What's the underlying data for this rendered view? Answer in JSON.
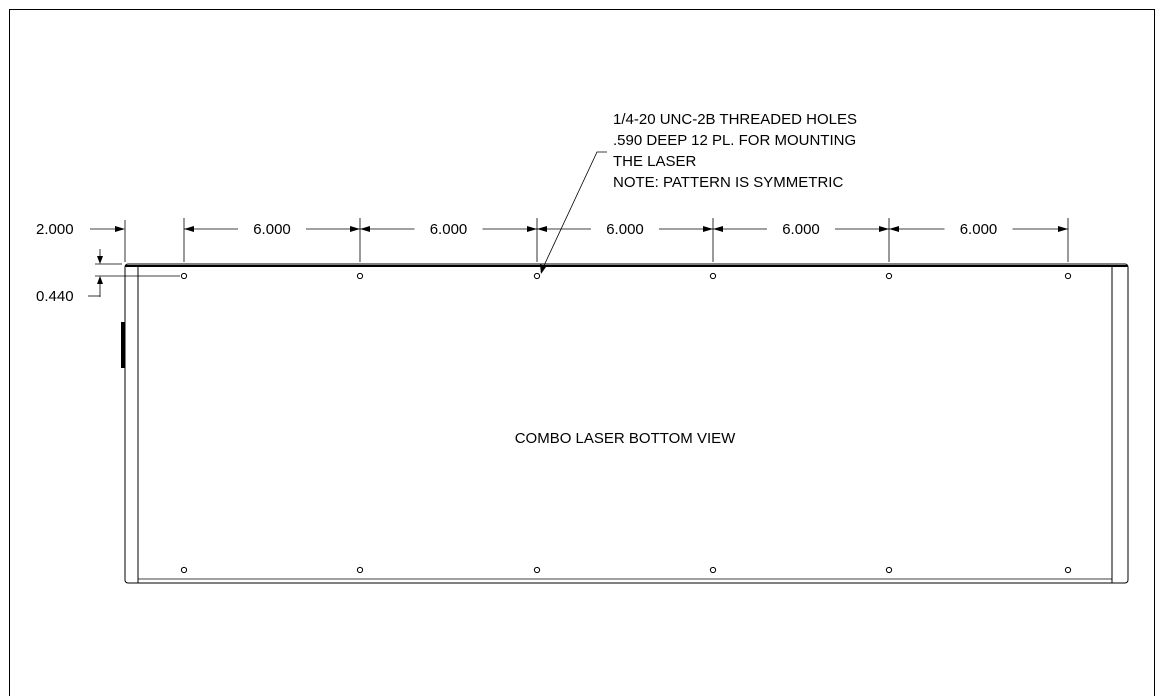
{
  "view_label": "COMBO LASER BOTTOM VIEW",
  "note_lines": [
    "1/4-20 UNC-2B THREADED HOLES",
    ".590 DEEP 12 PL. FOR MOUNTING",
    "THE LASER",
    "NOTE: PATTERN IS SYMMETRIC"
  ],
  "dimensions": {
    "edge_offset": "2.000",
    "hole_row_offset": "0.440",
    "hole_spacing": [
      "6.000",
      "6.000",
      "6.000",
      "6.000",
      "6.000"
    ]
  },
  "hole_rows": 2,
  "holes_per_row": 6
}
